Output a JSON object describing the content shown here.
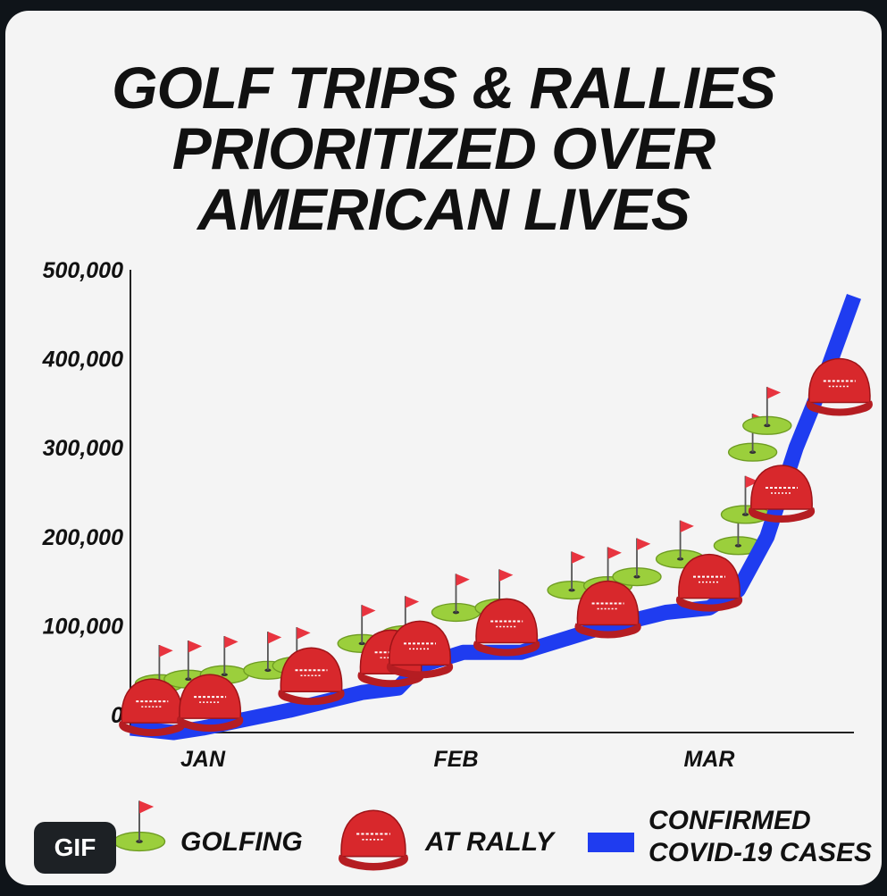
{
  "chart_data": {
    "type": "line",
    "title_lines": [
      "GOLF TRIPS & RALLIES",
      "PRIORITIZED OVER",
      "AMERICAN LIVES"
    ],
    "x_tick_labels": [
      "JAN",
      "FEB",
      "MAR"
    ],
    "y_tick_labels": [
      "0",
      "100,000",
      "200,000",
      "300,000",
      "400,000",
      "500,000"
    ],
    "y_ticks": [
      0,
      100000,
      200000,
      300000,
      400000,
      500000
    ],
    "ylim": [
      -20000,
      500000
    ],
    "xlim": [
      0,
      100
    ],
    "x_tick_positions": [
      10,
      45,
      80
    ],
    "grid": false,
    "legend_position": "bottom",
    "series": [
      {
        "name": "CONFIRMED COVID-19 CASES",
        "color": "#1f3cf0",
        "points": [
          [
            0,
            -15000
          ],
          [
            6,
            -20000
          ],
          [
            10,
            -15000
          ],
          [
            22,
            5000
          ],
          [
            32,
            25000
          ],
          [
            37,
            30000
          ],
          [
            40,
            55000
          ],
          [
            46,
            70000
          ],
          [
            54,
            70000
          ],
          [
            64,
            95000
          ],
          [
            74,
            115000
          ],
          [
            80,
            120000
          ],
          [
            84,
            140000
          ],
          [
            88,
            200000
          ],
          [
            92,
            300000
          ],
          [
            96,
            380000
          ],
          [
            100,
            470000
          ]
        ]
      }
    ],
    "golfing_events": [
      [
        4,
        35000
      ],
      [
        8,
        40000
      ],
      [
        13,
        45000
      ],
      [
        19,
        50000
      ],
      [
        23,
        55000
      ],
      [
        32,
        80000
      ],
      [
        38,
        90000
      ],
      [
        45,
        115000
      ],
      [
        51,
        120000
      ],
      [
        61,
        140000
      ],
      [
        66,
        145000
      ],
      [
        70,
        155000
      ],
      [
        76,
        175000
      ],
      [
        84,
        190000
      ],
      [
        85,
        225000
      ],
      [
        86,
        295000
      ],
      [
        88,
        325000
      ]
    ],
    "rally_events": [
      [
        3,
        5000
      ],
      [
        11,
        10000
      ],
      [
        25,
        40000
      ],
      [
        36,
        60000
      ],
      [
        40,
        70000
      ],
      [
        52,
        95000
      ],
      [
        66,
        115000
      ],
      [
        80,
        145000
      ],
      [
        90,
        245000
      ],
      [
        98,
        365000
      ]
    ],
    "legend": [
      {
        "label": "GOLFING",
        "icon": "golf-flag-icon"
      },
      {
        "label": "AT RALLY",
        "icon": "red-hat-icon"
      },
      {
        "label_lines": [
          "CONFIRMED",
          "COVID-19 CASES"
        ],
        "icon": "blue-line-swatch"
      }
    ],
    "colors": {
      "case_line": "#1f3cf0",
      "green": "#9bcf3c",
      "flag": "#e8343f",
      "hat": "#d8282c",
      "text": "#111111"
    }
  },
  "badge": {
    "label": "GIF"
  }
}
